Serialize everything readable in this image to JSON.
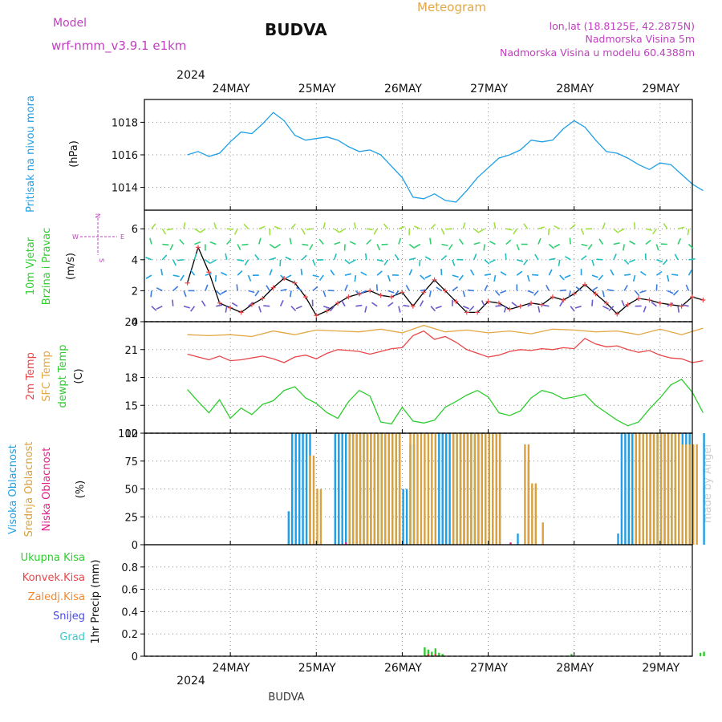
{
  "header": {
    "model_label": "Model",
    "model_name": "wrf-nmm_v3.9.1 e1km",
    "station": "BUDVA",
    "product": "Meteogram",
    "lonlat": "lon,lat (18.8125E, 42.2875N)",
    "elevation": "Nadmorska Visina 5m",
    "model_elevation": "Nadmorska Visina u modelu 60.4388m",
    "year": "2024",
    "footer_station": "BUDVA",
    "watermark": "made by Angel"
  },
  "colors": {
    "pressure": "#1e9fe6",
    "temp2m": "#e8474a",
    "sfc_temp": "#e3a745",
    "dewpt": "#2ecc2e",
    "cloud_high": "#1e9fe6",
    "cloud_mid": "#d9a23f",
    "cloud_low": "#e0218a",
    "precip_total": "#2ecc2e",
    "precip_conv": "#e8474a",
    "precip_frozen": "#f08a30",
    "snow": "#4a4ae8",
    "graupel": "#3cc8c8",
    "wind_label": "#2ecc2e",
    "compass": "#c040c0"
  },
  "chart_data": [
    {
      "type": "line",
      "panel": "pressure",
      "ylabel_name": "Pritisak na nivou mora",
      "ylabel_unit": "(hPa)",
      "ylim": [
        1012.6,
        1019.4
      ],
      "yticks": [
        "1014",
        "1016",
        "1018"
      ],
      "xlabels": [
        "24MAY",
        "25MAY",
        "26MAY",
        "27MAY",
        "28MAY",
        "29MAY"
      ],
      "grid": true,
      "series": [
        {
          "key": "pressure",
          "x": [
            0,
            3,
            6,
            9,
            12,
            15,
            18,
            21,
            24,
            27,
            30,
            33,
            36,
            39,
            42,
            45,
            48,
            51,
            54,
            57,
            60,
            63,
            66,
            69,
            72,
            75,
            78,
            81,
            84,
            87,
            90,
            93,
            96,
            99,
            102,
            105,
            108,
            111,
            114,
            117,
            120,
            123,
            126,
            129,
            132,
            135,
            138,
            141,
            144
          ],
          "y": [
            1016.0,
            1016.2,
            1015.9,
            1016.1,
            1016.8,
            1017.4,
            1017.3,
            1017.9,
            1018.6,
            1018.1,
            1017.2,
            1016.9,
            1017.0,
            1017.1,
            1016.9,
            1016.5,
            1016.2,
            1016.3,
            1016.0,
            1015.3,
            1014.6,
            1013.4,
            1013.3,
            1013.6,
            1013.2,
            1013.1,
            1013.8,
            1014.6,
            1015.2,
            1015.8,
            1016.0,
            1016.3,
            1016.9,
            1016.8,
            1016.9,
            1017.6,
            1018.1,
            1017.7,
            1016.9,
            1016.2,
            1016.1,
            1015.8,
            1015.4,
            1015.1,
            1015.5,
            1015.4,
            1014.8,
            1014.2,
            1013.8
          ]
        }
      ]
    },
    {
      "type": "line",
      "panel": "wind",
      "ylabel_name_line1": "10m Vjetar",
      "ylabel_name_line2": "Brzina i Pravac",
      "ylabel_unit": "(m/s)",
      "compass": {
        "n": "N",
        "s": "S",
        "w": "W",
        "e": "E"
      },
      "ylim": [
        0,
        7.2
      ],
      "yticks": [
        "0",
        "2",
        "4",
        "6"
      ],
      "series": [
        {
          "key": "wind_speed",
          "x": [
            0,
            3,
            6,
            9,
            12,
            15,
            18,
            21,
            24,
            27,
            30,
            33,
            36,
            39,
            42,
            45,
            48,
            51,
            54,
            57,
            60,
            63,
            66,
            69,
            72,
            75,
            78,
            81,
            84,
            87,
            90,
            93,
            96,
            99,
            102,
            105,
            108,
            111,
            114,
            117,
            120,
            123,
            126,
            129,
            132,
            135,
            138,
            141,
            144
          ],
          "y": [
            2.5,
            4.8,
            3.2,
            1.2,
            0.9,
            0.6,
            1.1,
            1.5,
            2.2,
            2.8,
            2.5,
            1.6,
            0.4,
            0.7,
            1.2,
            1.6,
            1.8,
            2.0,
            1.7,
            1.6,
            1.9,
            1.0,
            1.9,
            2.7,
            2.0,
            1.3,
            0.6,
            0.6,
            1.3,
            1.2,
            0.8,
            1.0,
            1.2,
            1.1,
            1.6,
            1.4,
            1.8,
            2.4,
            1.8,
            1.2,
            0.5,
            1.1,
            1.5,
            1.4,
            1.2,
            1.1,
            1.0,
            1.6,
            1.4
          ]
        }
      ]
    },
    {
      "type": "line",
      "panel": "temperature",
      "ylabel_names": [
        "2m Temp",
        "SFC Temp",
        "dewpt Temp"
      ],
      "ylabel_unit": "(C)",
      "ylim": [
        12,
        24
      ],
      "yticks": [
        "12",
        "15",
        "18",
        "21",
        "24"
      ],
      "series": [
        {
          "key": "sfc_temp",
          "x": [
            0,
            6,
            12,
            18,
            24,
            30,
            36,
            42,
            48,
            54,
            60,
            66,
            72,
            78,
            84,
            90,
            96,
            102,
            108,
            114,
            120,
            126,
            132,
            138,
            144
          ],
          "y": [
            22.6,
            22.5,
            22.6,
            22.4,
            23.0,
            22.6,
            23.1,
            23.0,
            22.9,
            23.2,
            22.8,
            23.6,
            22.9,
            23.1,
            22.8,
            23.0,
            22.7,
            23.2,
            23.1,
            22.9,
            23.0,
            22.6,
            23.2,
            22.6,
            23.3
          ]
        },
        {
          "key": "temp2m",
          "x": [
            0,
            3,
            6,
            9,
            12,
            15,
            18,
            21,
            24,
            27,
            30,
            33,
            36,
            39,
            42,
            45,
            48,
            51,
            54,
            57,
            60,
            63,
            66,
            69,
            72,
            75,
            78,
            81,
            84,
            87,
            90,
            93,
            96,
            99,
            102,
            105,
            108,
            111,
            114,
            117,
            120,
            123,
            126,
            129,
            132,
            135,
            138,
            141,
            144
          ],
          "y": [
            20.5,
            20.2,
            19.9,
            20.3,
            19.8,
            19.9,
            20.1,
            20.3,
            20.0,
            19.6,
            20.2,
            20.4,
            20.0,
            20.6,
            21.0,
            20.9,
            20.8,
            20.5,
            20.8,
            21.1,
            21.2,
            22.5,
            23.0,
            22.1,
            22.4,
            21.8,
            21.0,
            20.6,
            20.2,
            20.4,
            20.8,
            21.0,
            20.9,
            21.1,
            21.0,
            21.2,
            21.1,
            22.2,
            21.6,
            21.3,
            21.4,
            21.0,
            20.7,
            20.9,
            20.4,
            20.1,
            20.0,
            19.6,
            19.8
          ]
        },
        {
          "key": "dewpt",
          "x": [
            0,
            3,
            6,
            9,
            12,
            15,
            18,
            21,
            24,
            27,
            30,
            33,
            36,
            39,
            42,
            45,
            48,
            51,
            54,
            57,
            60,
            63,
            66,
            69,
            72,
            75,
            78,
            81,
            84,
            87,
            90,
            93,
            96,
            99,
            102,
            105,
            108,
            111,
            114,
            117,
            120,
            123,
            126,
            129,
            132,
            135,
            138,
            141,
            144
          ],
          "y": [
            16.7,
            15.4,
            14.2,
            15.6,
            13.6,
            14.7,
            14.0,
            15.1,
            15.5,
            16.6,
            17.0,
            15.8,
            15.2,
            14.2,
            13.6,
            15.4,
            16.6,
            16.0,
            13.2,
            13.0,
            14.8,
            13.3,
            13.1,
            13.4,
            14.8,
            15.4,
            16.1,
            16.6,
            15.9,
            14.2,
            13.9,
            14.4,
            15.8,
            16.6,
            16.3,
            15.7,
            15.9,
            16.2,
            15.0,
            14.2,
            13.4,
            12.8,
            13.2,
            14.6,
            15.8,
            17.2,
            17.8,
            16.4,
            14.2
          ]
        }
      ]
    },
    {
      "type": "bar",
      "panel": "clouds",
      "ylabel_names": [
        "Visoka Oblacnost",
        "Srednja Oblacnost",
        "Niska Oblacnost"
      ],
      "ylabel_unit": "(%)",
      "ylim": [
        0,
        100
      ],
      "yticks": [
        "0",
        "25",
        "50",
        "75",
        "100"
      ],
      "series": [
        {
          "key": "cloud_high",
          "segments": [
            [
              28,
              29,
              30
            ],
            [
              29,
              35,
              100
            ],
            [
              41,
              60,
              100
            ],
            [
              60,
              62,
              50
            ],
            [
              62,
              64,
              90
            ],
            [
              70,
              88,
              100
            ],
            [
              92,
              93,
              10
            ],
            [
              95,
              96,
              75
            ],
            [
              120,
              121,
              10
            ],
            [
              121,
              141,
              100
            ],
            [
              144,
              145,
              100
            ]
          ]
        },
        {
          "key": "cloud_mid",
          "segments": [
            [
              34,
              36,
              80
            ],
            [
              36,
              38,
              50
            ],
            [
              45,
              60,
              100
            ],
            [
              62,
              70,
              100
            ],
            [
              74,
              88,
              100
            ],
            [
              94,
              96,
              90
            ],
            [
              96,
              98,
              55
            ],
            [
              99,
              100,
              20
            ],
            [
              125,
              138,
              100
            ],
            [
              138,
              143,
              90
            ]
          ]
        },
        {
          "key": "cloud_low",
          "segments": [
            [
              44,
              45,
              2
            ],
            [
              90,
              91,
              2
            ]
          ]
        }
      ]
    },
    {
      "type": "bar",
      "panel": "precip",
      "ylabel_names": [
        "Ukupna Kisa",
        "Konvek.Kisa",
        "Zaledj.Kisa",
        "Snijeg",
        "Grad"
      ],
      "ylabel_unit": "1hr Precip (mm)",
      "ylim": [
        0,
        1.0
      ],
      "yticks": [
        "0",
        "0.2",
        "0.4",
        "0.6",
        "0.8"
      ],
      "xlabels": [
        "24MAY",
        "25MAY",
        "26MAY",
        "27MAY",
        "28MAY",
        "29MAY"
      ],
      "series": [
        {
          "key": "precip_total",
          "segments": [
            [
              66,
              67,
              0.08
            ],
            [
              67,
              68,
              0.06
            ],
            [
              68,
              69,
              0.04
            ],
            [
              69,
              70,
              0.07
            ],
            [
              70,
              71,
              0.03
            ],
            [
              71,
              72,
              0.02
            ],
            [
              107,
              108,
              0.02
            ],
            [
              143,
              144,
              0.03
            ],
            [
              144,
              145,
              0.04
            ]
          ]
        },
        {
          "key": "precip_conv",
          "segments": [
            [
              67,
              68,
              0.02
            ],
            [
              69,
              70,
              0.02
            ]
          ]
        }
      ]
    }
  ]
}
